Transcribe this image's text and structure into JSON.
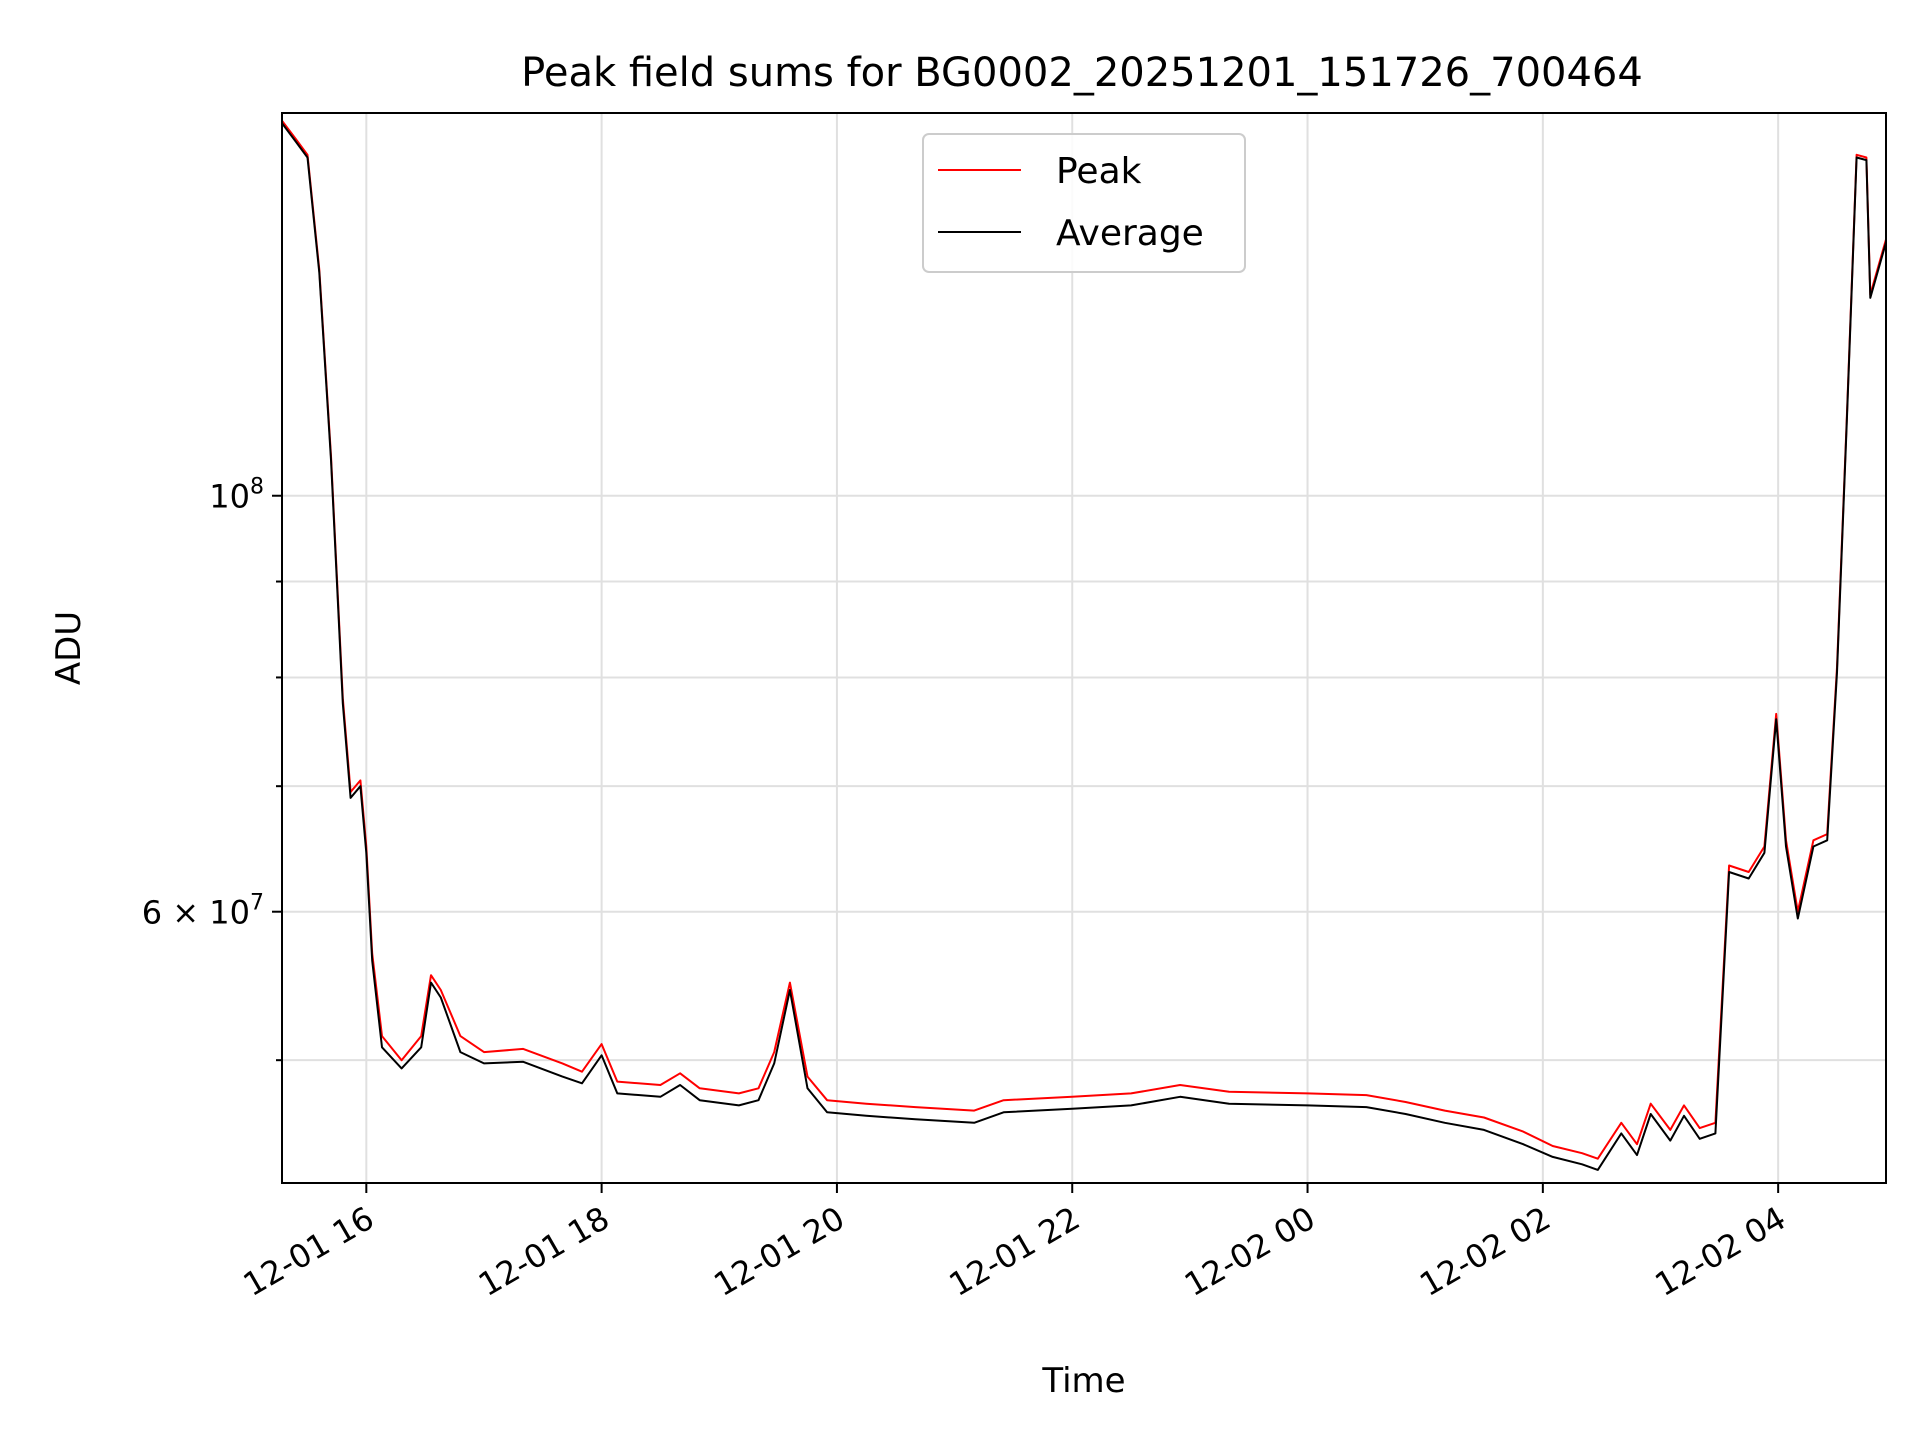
{
  "chart_data": {
    "type": "line",
    "title": "Peak field sums for BG0002_20251201_151726_700464",
    "xlabel": "Time",
    "ylabel": "ADU",
    "y_scale": "log",
    "ylim": [
      43000000,
      160000000
    ],
    "xlim": [
      "2025-12-01 15:17",
      "2025-12-02 04:55"
    ],
    "x_tick_labels": [
      "12-01 16",
      "12-01 18",
      "12-01 20",
      "12-01 22",
      "12-02 00",
      "12-02 02",
      "12-02 04"
    ],
    "x_ticks": [
      "2025-12-01 16:00",
      "2025-12-01 18:00",
      "2025-12-01 20:00",
      "2025-12-01 22:00",
      "2025-12-02 00:00",
      "2025-12-02 02:00",
      "2025-12-02 04:00"
    ],
    "y_ticks": [
      {
        "value": 100000000,
        "base": "10",
        "exp": "8",
        "mult": ""
      },
      {
        "value": 60000000,
        "base": "10",
        "exp": "7",
        "mult": "6 × "
      }
    ],
    "y_minor_ticks": [
      50000000,
      70000000,
      80000000,
      90000000
    ],
    "grid": true,
    "legend_position": "top-center",
    "series": [
      {
        "name": "Peak",
        "color": "#ff0000",
        "points": [
          [
            "2025-12-01 15:17",
            158500000
          ],
          [
            "2025-12-01 15:24",
            155000000
          ],
          [
            "2025-12-01 15:30",
            152000000
          ],
          [
            "2025-12-01 15:36",
            132000000
          ],
          [
            "2025-12-01 15:42",
            105000000
          ],
          [
            "2025-12-01 15:48",
            78000000
          ],
          [
            "2025-12-01 15:52",
            69500000
          ],
          [
            "2025-12-01 15:57",
            70500000
          ],
          [
            "2025-12-01 16:00",
            65000000
          ],
          [
            "2025-12-01 16:03",
            57000000
          ],
          [
            "2025-12-01 16:08",
            51500000
          ],
          [
            "2025-12-01 16:18",
            50000000
          ],
          [
            "2025-12-01 16:28",
            51500000
          ],
          [
            "2025-12-01 16:33",
            55500000
          ],
          [
            "2025-12-01 16:38",
            54500000
          ],
          [
            "2025-12-01 16:48",
            51500000
          ],
          [
            "2025-12-01 17:00",
            50500000
          ],
          [
            "2025-12-01 17:20",
            50700000
          ],
          [
            "2025-12-01 17:40",
            49800000
          ],
          [
            "2025-12-01 17:50",
            49300000
          ],
          [
            "2025-12-01 18:00",
            51000000
          ],
          [
            "2025-12-01 18:08",
            48700000
          ],
          [
            "2025-12-01 18:30",
            48500000
          ],
          [
            "2025-12-01 18:40",
            49200000
          ],
          [
            "2025-12-01 18:50",
            48300000
          ],
          [
            "2025-12-01 19:10",
            48000000
          ],
          [
            "2025-12-01 19:20",
            48300000
          ],
          [
            "2025-12-01 19:28",
            50500000
          ],
          [
            "2025-12-01 19:36",
            55000000
          ],
          [
            "2025-12-01 19:45",
            49000000
          ],
          [
            "2025-12-01 19:55",
            47600000
          ],
          [
            "2025-12-01 20:15",
            47400000
          ],
          [
            "2025-12-01 20:40",
            47200000
          ],
          [
            "2025-12-01 21:10",
            47000000
          ],
          [
            "2025-12-01 21:25",
            47600000
          ],
          [
            "2025-12-01 22:00",
            47800000
          ],
          [
            "2025-12-01 22:30",
            48000000
          ],
          [
            "2025-12-01 22:55",
            48500000
          ],
          [
            "2025-12-01 23:20",
            48100000
          ],
          [
            "2025-12-02 00:00",
            48000000
          ],
          [
            "2025-12-02 00:30",
            47900000
          ],
          [
            "2025-12-02 00:50",
            47500000
          ],
          [
            "2025-12-02 01:10",
            47000000
          ],
          [
            "2025-12-02 01:30",
            46600000
          ],
          [
            "2025-12-02 01:50",
            45800000
          ],
          [
            "2025-12-02 02:05",
            45000000
          ],
          [
            "2025-12-02 02:20",
            44600000
          ],
          [
            "2025-12-02 02:28",
            44300000
          ],
          [
            "2025-12-02 02:40",
            46300000
          ],
          [
            "2025-12-02 02:48",
            45100000
          ],
          [
            "2025-12-02 02:55",
            47400000
          ],
          [
            "2025-12-02 03:05",
            45900000
          ],
          [
            "2025-12-02 03:12",
            47300000
          ],
          [
            "2025-12-02 03:20",
            46000000
          ],
          [
            "2025-12-02 03:28",
            46300000
          ],
          [
            "2025-12-02 03:35",
            63500000
          ],
          [
            "2025-12-02 03:45",
            63000000
          ],
          [
            "2025-12-02 03:53",
            65000000
          ],
          [
            "2025-12-02 03:59",
            76500000
          ],
          [
            "2025-12-02 04:04",
            65500000
          ],
          [
            "2025-12-02 04:10",
            60000000
          ],
          [
            "2025-12-02 04:18",
            65500000
          ],
          [
            "2025-12-02 04:25",
            66000000
          ],
          [
            "2025-12-02 04:30",
            81000000
          ],
          [
            "2025-12-02 04:35",
            110000000
          ],
          [
            "2025-12-02 04:40",
            152000000
          ],
          [
            "2025-12-02 04:45",
            151500000
          ],
          [
            "2025-12-02 04:47",
            128000000
          ],
          [
            "2025-12-02 04:55",
            137000000
          ]
        ]
      },
      {
        "name": "Average",
        "color": "#000000",
        "points": [
          [
            "2025-12-01 15:17",
            158000000
          ],
          [
            "2025-12-01 15:24",
            154500000
          ],
          [
            "2025-12-01 15:30",
            151500000
          ],
          [
            "2025-12-01 15:36",
            131500000
          ],
          [
            "2025-12-01 15:42",
            104500000
          ],
          [
            "2025-12-01 15:48",
            77500000
          ],
          [
            "2025-12-01 15:52",
            69000000
          ],
          [
            "2025-12-01 15:57",
            70000000
          ],
          [
            "2025-12-01 16:00",
            64500000
          ],
          [
            "2025-12-01 16:03",
            56500000
          ],
          [
            "2025-12-01 16:08",
            50800000
          ],
          [
            "2025-12-01 16:18",
            49500000
          ],
          [
            "2025-12-01 16:28",
            50800000
          ],
          [
            "2025-12-01 16:33",
            55000000
          ],
          [
            "2025-12-01 16:38",
            54000000
          ],
          [
            "2025-12-01 16:48",
            50500000
          ],
          [
            "2025-12-01 17:00",
            49800000
          ],
          [
            "2025-12-01 17:20",
            49900000
          ],
          [
            "2025-12-01 17:40",
            49000000
          ],
          [
            "2025-12-01 17:50",
            48600000
          ],
          [
            "2025-12-01 18:00",
            50300000
          ],
          [
            "2025-12-01 18:08",
            48000000
          ],
          [
            "2025-12-01 18:30",
            47800000
          ],
          [
            "2025-12-01 18:40",
            48500000
          ],
          [
            "2025-12-01 18:50",
            47600000
          ],
          [
            "2025-12-01 19:10",
            47300000
          ],
          [
            "2025-12-01 19:20",
            47600000
          ],
          [
            "2025-12-01 19:28",
            49800000
          ],
          [
            "2025-12-01 19:36",
            54500000
          ],
          [
            "2025-12-01 19:45",
            48300000
          ],
          [
            "2025-12-01 19:55",
            46900000
          ],
          [
            "2025-12-01 20:15",
            46700000
          ],
          [
            "2025-12-01 20:40",
            46500000
          ],
          [
            "2025-12-01 21:10",
            46300000
          ],
          [
            "2025-12-01 21:25",
            46900000
          ],
          [
            "2025-12-01 22:00",
            47100000
          ],
          [
            "2025-12-01 22:30",
            47300000
          ],
          [
            "2025-12-01 22:55",
            47800000
          ],
          [
            "2025-12-01 23:20",
            47400000
          ],
          [
            "2025-12-02 00:00",
            47300000
          ],
          [
            "2025-12-02 00:30",
            47200000
          ],
          [
            "2025-12-02 00:50",
            46800000
          ],
          [
            "2025-12-02 01:10",
            46300000
          ],
          [
            "2025-12-02 01:30",
            45900000
          ],
          [
            "2025-12-02 01:50",
            45100000
          ],
          [
            "2025-12-02 02:05",
            44400000
          ],
          [
            "2025-12-02 02:20",
            44000000
          ],
          [
            "2025-12-02 02:28",
            43700000
          ],
          [
            "2025-12-02 02:40",
            45700000
          ],
          [
            "2025-12-02 02:48",
            44500000
          ],
          [
            "2025-12-02 02:55",
            46800000
          ],
          [
            "2025-12-02 03:05",
            45300000
          ],
          [
            "2025-12-02 03:12",
            46700000
          ],
          [
            "2025-12-02 03:20",
            45400000
          ],
          [
            "2025-12-02 03:28",
            45700000
          ],
          [
            "2025-12-02 03:35",
            63000000
          ],
          [
            "2025-12-02 03:45",
            62500000
          ],
          [
            "2025-12-02 03:53",
            64500000
          ],
          [
            "2025-12-02 03:59",
            76000000
          ],
          [
            "2025-12-02 04:04",
            65000000
          ],
          [
            "2025-12-02 04:10",
            59500000
          ],
          [
            "2025-12-02 04:18",
            65000000
          ],
          [
            "2025-12-02 04:25",
            65500000
          ],
          [
            "2025-12-02 04:30",
            80500000
          ],
          [
            "2025-12-02 04:35",
            109500000
          ],
          [
            "2025-12-02 04:40",
            151500000
          ],
          [
            "2025-12-02 04:45",
            151000000
          ],
          [
            "2025-12-02 04:47",
            127500000
          ],
          [
            "2025-12-02 04:55",
            136500000
          ]
        ]
      }
    ]
  }
}
